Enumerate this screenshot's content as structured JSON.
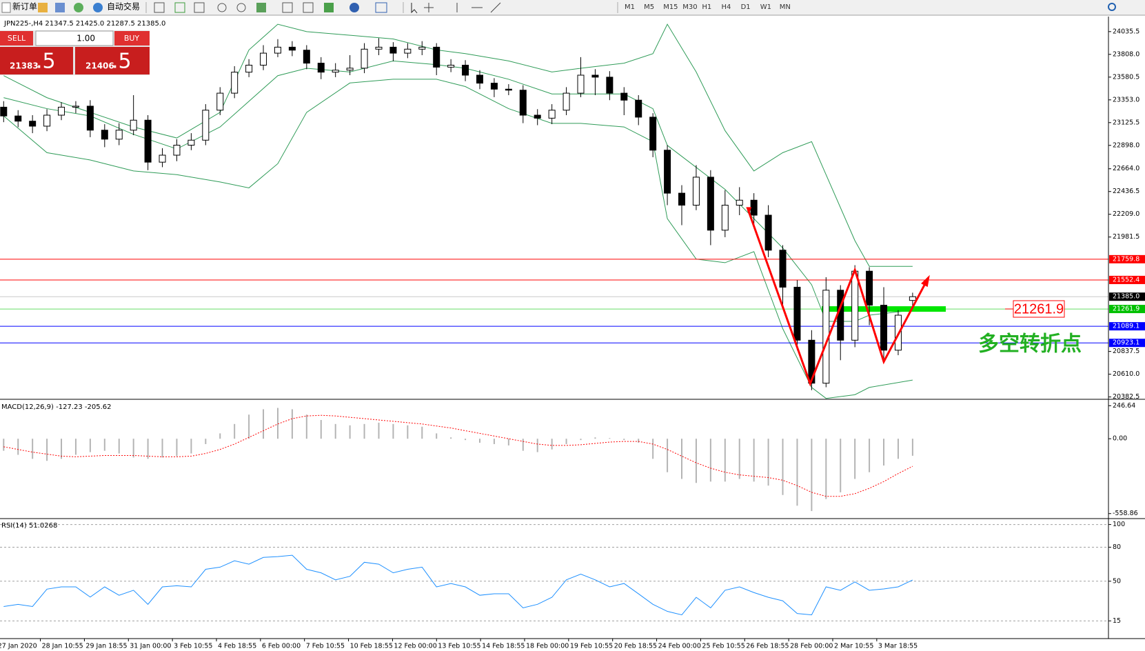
{
  "toolbar": {
    "new_order": "新订单",
    "auto_trading": "自动交易",
    "timeframes": [
      "M1",
      "M5",
      "M15",
      "M30",
      "H1",
      "H4",
      "D1",
      "W1",
      "MN"
    ]
  },
  "trade_panel": {
    "sell": "SELL",
    "buy": "BUY",
    "lot": "1.00",
    "bid_main": "21383",
    "bid_pips": ".5",
    "ask_main": "21406",
    "ask_pips": ".5"
  },
  "chart_data": [
    {
      "type": "candlestick",
      "title": "JPN225-,H4  21347.5 21425.0 21287.5 21385.0",
      "open": [
        23280,
        23192,
        23140,
        23090,
        23200,
        23280,
        23290,
        23050,
        22960,
        23050,
        23150,
        22730,
        22800,
        22900,
        22950,
        23250,
        23420,
        23630,
        23700,
        23820,
        23880,
        23850,
        23720,
        23630,
        23650,
        23670,
        23860,
        23880,
        23820,
        23860,
        23880,
        23680,
        23700,
        23600,
        23520,
        23460,
        23450,
        23200,
        23170,
        23250,
        23420,
        23600,
        23580,
        23420,
        23350,
        23180,
        22850,
        22420,
        22300,
        22580,
        22050,
        22300,
        22350,
        22200,
        21850,
        21480,
        20950,
        20520,
        21450,
        20950,
        21640,
        21300,
        20850,
        21347.5
      ],
      "high": [
        23340,
        23250,
        23200,
        23260,
        23330,
        23340,
        23350,
        23110,
        23120,
        23400,
        23200,
        22870,
        22960,
        23020,
        23310,
        23480,
        23690,
        23760,
        23900,
        23960,
        23940,
        23900,
        23780,
        23720,
        23800,
        23920,
        23970,
        23930,
        23920,
        23940,
        23920,
        23760,
        23750,
        23650,
        23570,
        23510,
        23500,
        23260,
        23310,
        23480,
        23780,
        23660,
        23640,
        23480,
        23400,
        23220,
        22900,
        22500,
        22700,
        22650,
        22450,
        22480,
        22420,
        22300,
        21900,
        21550,
        21050,
        21580,
        21500,
        21700,
        21680,
        21480,
        21250,
        21425
      ],
      "low": [
        23130,
        23080,
        23020,
        23040,
        23150,
        23220,
        22980,
        22880,
        22900,
        23000,
        22650,
        22680,
        22740,
        22850,
        22900,
        23200,
        23370,
        23580,
        23650,
        23780,
        23790,
        23660,
        23560,
        23580,
        23600,
        23620,
        23800,
        23740,
        23770,
        23800,
        23600,
        23630,
        23540,
        23460,
        23380,
        23400,
        23120,
        23100,
        23110,
        23200,
        23380,
        23400,
        23350,
        23200,
        23100,
        22780,
        22300,
        22100,
        22250,
        21900,
        21980,
        22200,
        22100,
        21780,
        21300,
        20850,
        20450,
        20480,
        20750,
        20880,
        21100,
        20750,
        20800,
        21287.5
      ],
      "close": [
        23192,
        23140,
        23090,
        23200,
        23280,
        23290,
        23050,
        22960,
        23050,
        23150,
        22730,
        22800,
        22900,
        22950,
        23250,
        23420,
        23630,
        23700,
        23820,
        23880,
        23850,
        23720,
        23630,
        23650,
        23670,
        23860,
        23880,
        23820,
        23860,
        23880,
        23680,
        23700,
        23600,
        23520,
        23460,
        23450,
        23200,
        23170,
        23250,
        23420,
        23600,
        23580,
        23420,
        23350,
        23180,
        22850,
        22420,
        22300,
        22580,
        22050,
        22300,
        22350,
        22200,
        21850,
        21480,
        20950,
        20520,
        21450,
        20950,
        21640,
        21300,
        20850,
        21200,
        21385
      ],
      "bands": {
        "color": "#2e9b57",
        "x": [
          0,
          3,
          6,
          9,
          12,
          15,
          17,
          19,
          21,
          24,
          27,
          30,
          32,
          35,
          38,
          40,
          43,
          45,
          46,
          48,
          50,
          52,
          54,
          56,
          57,
          59,
          60,
          63
        ],
        "upper": [
          23595,
          23375,
          23228,
          23082,
          22972,
          23228,
          23852,
          24109,
          24035,
          23999,
          23962,
          23852,
          23815,
          23742,
          23632,
          23669,
          23720,
          23815,
          24109,
          23632,
          23045,
          22642,
          22825,
          22935,
          22605,
          21945,
          21688,
          21688
        ],
        "middle": [
          23375,
          23265,
          23192,
          23008,
          22862,
          23082,
          23339,
          23595,
          23669,
          23632,
          23742,
          23705,
          23669,
          23559,
          23412,
          23412,
          23412,
          23265,
          22898,
          22678,
          22458,
          22165,
          21872,
          21505,
          21138,
          21138,
          21200,
          21250
        ],
        "lower": [
          23192,
          22825,
          22752,
          22642,
          22605,
          22532,
          22473,
          22715,
          23228,
          23522,
          23559,
          23559,
          23486,
          23265,
          23118,
          23118,
          23082,
          22935,
          22165,
          21761,
          21725,
          21835,
          21065,
          20478,
          20368,
          20405,
          20478,
          20551
        ]
      },
      "ylim": [
        20366,
        24186
      ],
      "yticks": [
        24035.5,
        {
          "value": 23808,
          "label": "23808.0"
        },
        23580.5,
        {
          "value": 23353,
          "label": "23353.0"
        },
        23125.5,
        {
          "value": 22898,
          "label": "22898.0"
        },
        {
          "value": 22664,
          "label": "22664.0"
        },
        22436.5,
        {
          "value": 22209,
          "label": "22209.0"
        },
        21981.5,
        20837.5,
        {
          "value": 20610,
          "label": "20610.0"
        },
        20382.5
      ],
      "levels": [
        {
          "price": 21759.8,
          "color": "#ff0000",
          "label_color": "#ff0000"
        },
        {
          "price": 21552.4,
          "color": "#ff0000",
          "label_color": "#ff0000"
        },
        {
          "price": {
            "value": 21385,
            "label": "21385.0"
          },
          "color": "#c8c8c8",
          "label_color": "#000000"
        },
        {
          "price": 21261.9,
          "color": "#66dd66",
          "label_color": "#00c000"
        },
        {
          "price": 21089.1,
          "color": "#0000ff",
          "label_color": "#0000ff"
        },
        {
          "price": 20923.1,
          "color": "#0000ff",
          "label_color": "#0000ff"
        }
      ],
      "support": {
        "x": [
          56.7,
          65.3
        ],
        "value": 21261.9,
        "color": "#00e600"
      },
      "annotation": {
        "text": "多空转折点",
        "price_box": 21261.9,
        "color": "#ff0000",
        "zigzag": {
          "x": [
            51.6,
            55.9,
            59,
            61,
            64.1
          ],
          "y": [
            22253,
            20515,
            21652,
            20735,
            21578
          ]
        }
      },
      "x_labels": [
        "27 Jan 2020",
        "28 Jan 10:55",
        "29 Jan 18:55",
        "31 Jan 00:00",
        "3 Feb 10:55",
        "4 Feb 18:55",
        "6 Feb 00:00",
        "7 Feb 10:55",
        "10 Feb 18:55",
        "12 Feb 00:00",
        "13 Feb 10:55",
        "14 Feb 18:55",
        "18 Feb 00:00",
        "19 Feb 10:55",
        "20 Feb 18:55",
        "24 Feb 00:00",
        "25 Feb 10:55",
        "26 Feb 18:55",
        "28 Feb 00:00",
        "2 Mar 10:55",
        "3 Mar 18:55"
      ]
    },
    {
      "type": "bar",
      "title": "MACD(12,26,9) -127.23 -205.62",
      "color": "#b4b4b4",
      "signal_color": "#ff0000",
      "values": [
        -90,
        -120,
        -150,
        -165,
        -150,
        -120,
        -100,
        -90,
        -110,
        -140,
        -150,
        -140,
        -130,
        -110,
        -40,
        40,
        110,
        180,
        220,
        230,
        220,
        180,
        140,
        110,
        100,
        110,
        120,
        110,
        100,
        90,
        40,
        10,
        -10,
        -30,
        -40,
        -50,
        -90,
        -100,
        -80,
        -40,
        -10,
        10,
        5,
        -10,
        -30,
        -150,
        -250,
        -300,
        -330,
        -320,
        -320,
        -300,
        -320,
        -350,
        -420,
        -500,
        -540,
        -450,
        -400,
        -300,
        -250,
        -200,
        -150,
        -127.23
      ],
      "signal": [
        -60,
        -80,
        -100,
        -115,
        -130,
        -135,
        -130,
        -125,
        -125,
        -125,
        -130,
        -135,
        -135,
        -130,
        -110,
        -80,
        -40,
        10,
        60,
        110,
        150,
        170,
        175,
        170,
        160,
        150,
        140,
        130,
        120,
        110,
        95,
        80,
        60,
        40,
        20,
        0,
        -20,
        -40,
        -50,
        -50,
        -45,
        -35,
        -25,
        -20,
        -20,
        -40,
        -80,
        -130,
        -180,
        -220,
        -250,
        -270,
        -280,
        -290,
        -310,
        -350,
        -400,
        -430,
        -430,
        -410,
        -370,
        -320,
        -260,
        -205.62
      ],
      "ylim": [
        -586,
        279
      ],
      "yticks": [
        246.64,
        {
          "value": 0,
          "label": "0.00"
        },
        -558.86
      ]
    },
    {
      "type": "line",
      "title": "RSI(14) 51.0268",
      "color": "#1e90ff",
      "values": [
        27.7,
        29.6,
        27.7,
        43,
        45,
        45,
        36,
        45,
        37.6,
        42,
        29.6,
        45,
        46,
        45,
        60.5,
        62.4,
        68,
        65,
        71,
        71.7,
        72.9,
        60.5,
        57.4,
        51.2,
        54.3,
        66.7,
        65,
        57.4,
        60.5,
        62.4,
        45,
        48,
        45,
        37.6,
        38.9,
        38.9,
        26.5,
        29.6,
        35.8,
        51.2,
        56.2,
        51.2,
        45,
        48,
        38.9,
        29.6,
        23.4,
        20.3,
        35.8,
        26.5,
        42,
        45,
        40,
        35.8,
        32.7,
        21.5,
        20.3,
        45,
        42,
        49.4,
        42,
        43.2,
        45,
        51.0268
      ],
      "ylim": [
        0,
        104
      ],
      "yticks": [
        100,
        80,
        50,
        15
      ]
    }
  ]
}
